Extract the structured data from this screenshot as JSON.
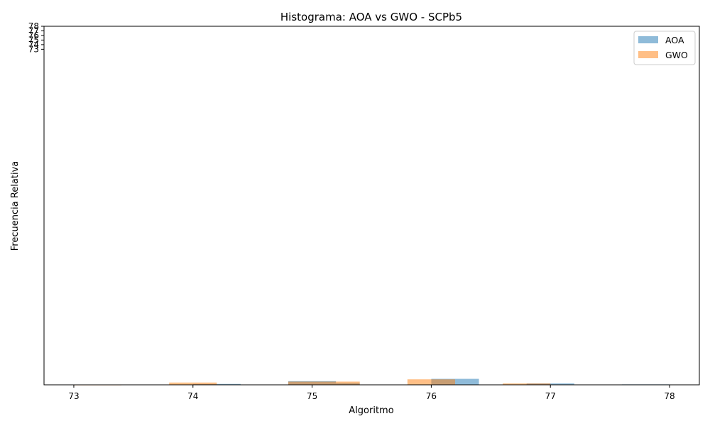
{
  "chart_data": {
    "type": "bar",
    "title": "Histograma: AOA vs GWO - SCPb5",
    "xlabel": "Algoritmo",
    "ylabel": "Frecuencia Relativa",
    "x_ticks": [
      "73",
      "74",
      "75",
      "76",
      "77",
      "78"
    ],
    "x_range": [
      72.75,
      78.25
    ],
    "y_ticks": [
      "73",
      "74",
      "75",
      "76",
      "77",
      "78"
    ],
    "y_range": [
      0,
      78
    ],
    "legend_position": "top-right",
    "grid": false,
    "series": [
      {
        "name": "AOA",
        "color": "#1f77b4",
        "opacity": 0.5,
        "bins": [
          {
            "start": 74.0,
            "end": 74.4,
            "value": 0.2
          },
          {
            "start": 74.8,
            "end": 75.2,
            "value": 0.8
          },
          {
            "start": 75.2,
            "end": 75.4,
            "value": 0.4
          },
          {
            "start": 76.0,
            "end": 76.4,
            "value": 1.3
          },
          {
            "start": 76.8,
            "end": 77.2,
            "value": 0.3
          },
          {
            "start": 77.6,
            "end": 78.0,
            "value": 0.1
          }
        ]
      },
      {
        "name": "GWO",
        "color": "#ff7f0e",
        "opacity": 0.5,
        "bins": [
          {
            "start": 73.0,
            "end": 73.4,
            "value": 0.05
          },
          {
            "start": 73.8,
            "end": 74.2,
            "value": 0.5
          },
          {
            "start": 74.8,
            "end": 75.4,
            "value": 0.7
          },
          {
            "start": 75.8,
            "end": 76.2,
            "value": 1.2
          },
          {
            "start": 76.6,
            "end": 77.0,
            "value": 0.3
          }
        ]
      }
    ]
  }
}
